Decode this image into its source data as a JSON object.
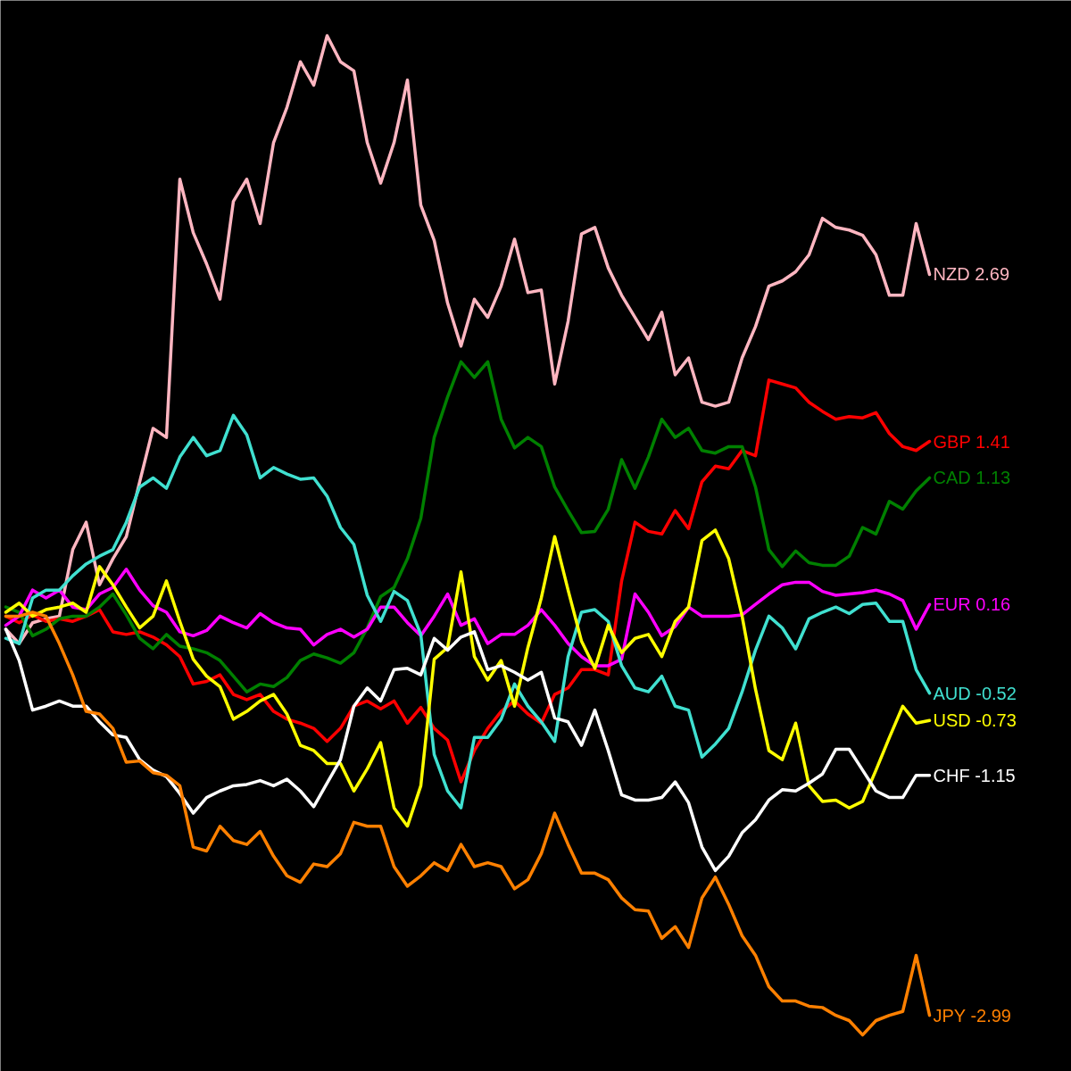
{
  "chart_data": {
    "type": "line",
    "ylim": [
      -3.42,
      4.79
    ],
    "tick_labels": false,
    "categories": [
      null,
      null,
      null,
      null,
      null,
      null,
      null,
      null,
      null,
      null,
      null,
      null,
      null,
      null,
      null,
      null,
      null,
      null,
      null,
      null,
      null,
      null,
      null,
      null,
      null,
      null,
      null,
      null,
      null,
      null,
      null,
      null,
      null,
      null,
      null,
      null,
      null,
      null,
      null,
      null,
      null,
      null,
      null,
      null,
      null,
      null,
      null,
      null,
      null,
      null,
      null,
      null,
      null,
      null,
      null,
      null,
      null,
      null,
      null,
      null,
      null,
      null,
      null,
      null,
      null,
      null,
      null,
      null,
      null,
      null
    ],
    "series": [
      {
        "color": "#ffb6c1",
        "values": [
          -0.03,
          -0.14,
          0.02,
          0.05,
          0.07,
          0.58,
          0.79,
          0.31,
          0.51,
          0.68,
          1.1,
          1.51,
          1.44,
          3.42,
          3.01,
          2.77,
          2.5,
          3.25,
          3.42,
          3.08,
          3.7,
          3.97,
          4.32,
          4.14,
          4.52,
          4.32,
          4.25,
          3.7,
          3.39,
          3.7,
          4.18,
          3.22,
          2.95,
          2.47,
          2.14,
          2.5,
          2.36,
          2.6,
          2.96,
          2.55,
          2.57,
          1.85,
          2.33,
          3.0,
          3.05,
          2.74,
          2.53,
          2.36,
          2.19,
          2.4,
          1.92,
          2.05,
          1.71,
          1.68,
          1.71,
          2.05,
          2.29,
          2.6,
          2.64,
          2.71,
          2.84,
          3.12,
          3.05,
          3.03,
          2.99,
          2.84,
          2.53,
          2.53,
          3.08,
          2.69
        ],
        "value_labels": [
          null,
          null,
          null,
          null,
          null,
          null,
          null,
          null,
          null,
          null,
          null,
          null,
          null,
          null,
          null,
          null,
          null,
          null,
          null,
          null,
          null,
          null,
          null,
          null,
          null,
          null,
          null,
          null,
          null,
          null,
          null,
          null,
          null,
          null,
          null,
          null,
          null,
          null,
          null,
          null,
          null,
          null,
          null,
          null,
          null,
          null,
          null,
          null,
          null,
          null,
          null,
          null,
          null,
          null,
          null,
          null,
          null,
          null,
          null,
          null,
          null,
          null,
          null,
          null,
          null,
          null,
          null,
          null,
          null,
          "NZD 2.69"
        ]
      },
      {
        "color": "#ff0000",
        "values": [
          0.07,
          0.02,
          0.08,
          0.03,
          0.05,
          0.03,
          0.07,
          0.12,
          -0.05,
          -0.07,
          -0.05,
          -0.09,
          -0.15,
          -0.24,
          -0.45,
          -0.43,
          -0.38,
          -0.53,
          -0.57,
          -0.53,
          -0.66,
          -0.72,
          -0.75,
          -0.79,
          -0.89,
          -0.79,
          -0.62,
          -0.58,
          -0.64,
          -0.58,
          -0.75,
          -0.63,
          -0.79,
          -0.88,
          -1.2,
          -0.96,
          -0.79,
          -0.66,
          -0.58,
          -0.68,
          -0.75,
          -0.53,
          -0.48,
          -0.34,
          -0.34,
          -0.38,
          0.34,
          0.79,
          0.72,
          0.7,
          0.88,
          0.74,
          1.1,
          1.22,
          1.2,
          1.34,
          1.3,
          1.88,
          1.85,
          1.82,
          1.71,
          1.64,
          1.58,
          1.6,
          1.59,
          1.63,
          1.47,
          1.37,
          1.34,
          1.41
        ],
        "value_labels": [
          null,
          null,
          null,
          null,
          null,
          null,
          null,
          null,
          null,
          null,
          null,
          null,
          null,
          null,
          null,
          null,
          null,
          null,
          null,
          null,
          null,
          null,
          null,
          null,
          null,
          null,
          null,
          null,
          null,
          null,
          null,
          null,
          null,
          null,
          null,
          null,
          null,
          null,
          null,
          null,
          null,
          null,
          null,
          null,
          null,
          null,
          null,
          null,
          null,
          null,
          null,
          null,
          null,
          null,
          null,
          null,
          null,
          null,
          null,
          null,
          null,
          null,
          null,
          null,
          null,
          null,
          null,
          null,
          null,
          "GBP 1.41"
        ]
      },
      {
        "color": "#008000",
        "values": [
          0.14,
          0.1,
          -0.08,
          -0.03,
          0.05,
          0.07,
          0.07,
          0.14,
          0.24,
          0.08,
          -0.1,
          -0.18,
          -0.07,
          -0.16,
          -0.18,
          -0.21,
          -0.27,
          -0.39,
          -0.51,
          -0.45,
          -0.47,
          -0.4,
          -0.27,
          -0.22,
          -0.25,
          -0.29,
          -0.21,
          -0.02,
          0.22,
          0.29,
          0.51,
          0.82,
          1.44,
          1.75,
          2.02,
          1.9,
          2.02,
          1.58,
          1.36,
          1.44,
          1.37,
          1.06,
          0.88,
          0.71,
          0.72,
          0.89,
          1.27,
          1.05,
          1.29,
          1.58,
          1.44,
          1.51,
          1.34,
          1.32,
          1.37,
          1.37,
          1.06,
          0.58,
          0.45,
          0.57,
          0.48,
          0.46,
          0.46,
          0.53,
          0.75,
          0.7,
          0.95,
          0.89,
          1.03,
          1.13
        ],
        "value_labels": [
          null,
          null,
          null,
          null,
          null,
          null,
          null,
          null,
          null,
          null,
          null,
          null,
          null,
          null,
          null,
          null,
          null,
          null,
          null,
          null,
          null,
          null,
          null,
          null,
          null,
          null,
          null,
          null,
          null,
          null,
          null,
          null,
          null,
          null,
          null,
          null,
          null,
          null,
          null,
          null,
          null,
          null,
          null,
          null,
          null,
          null,
          null,
          null,
          null,
          null,
          null,
          null,
          null,
          null,
          null,
          null,
          null,
          null,
          null,
          null,
          null,
          null,
          null,
          null,
          null,
          null,
          null,
          null,
          null,
          "CAD 1.13"
        ]
      },
      {
        "color": "#ff00ff",
        "values": [
          0.0,
          0.07,
          0.27,
          0.21,
          0.27,
          0.14,
          0.12,
          0.24,
          0.29,
          0.43,
          0.27,
          0.15,
          0.1,
          -0.05,
          -0.08,
          -0.04,
          0.07,
          0.02,
          -0.02,
          0.09,
          0.02,
          -0.02,
          -0.03,
          -0.15,
          -0.07,
          -0.03,
          -0.09,
          -0.03,
          0.14,
          0.14,
          0.02,
          -0.08,
          0.07,
          0.24,
          0.0,
          0.05,
          -0.14,
          -0.07,
          -0.07,
          0.0,
          0.12,
          0.0,
          -0.14,
          -0.24,
          -0.31,
          -0.31,
          -0.26,
          0.24,
          0.1,
          -0.08,
          -0.01,
          0.14,
          0.07,
          0.07,
          0.07,
          0.08,
          0.16,
          0.24,
          0.31,
          0.33,
          0.33,
          0.26,
          0.23,
          0.24,
          0.25,
          0.27,
          0.24,
          0.19,
          -0.03,
          0.16
        ],
        "value_labels": [
          null,
          null,
          null,
          null,
          null,
          null,
          null,
          null,
          null,
          null,
          null,
          null,
          null,
          null,
          null,
          null,
          null,
          null,
          null,
          null,
          null,
          null,
          null,
          null,
          null,
          null,
          null,
          null,
          null,
          null,
          null,
          null,
          null,
          null,
          null,
          null,
          null,
          null,
          null,
          null,
          null,
          null,
          null,
          null,
          null,
          null,
          null,
          null,
          null,
          null,
          null,
          null,
          null,
          null,
          null,
          null,
          null,
          null,
          null,
          null,
          null,
          null,
          null,
          null,
          null,
          null,
          null,
          null,
          null,
          "EUR 0.16"
        ]
      },
      {
        "color": "#40e0d0",
        "values": [
          -0.1,
          -0.14,
          0.21,
          0.27,
          0.27,
          0.38,
          0.47,
          0.53,
          0.58,
          0.79,
          1.06,
          1.13,
          1.05,
          1.29,
          1.44,
          1.3,
          1.34,
          1.61,
          1.46,
          1.13,
          1.21,
          1.16,
          1.12,
          1.13,
          0.99,
          0.75,
          0.62,
          0.23,
          0.03,
          0.26,
          0.19,
          -0.07,
          -0.99,
          -1.27,
          -1.4,
          -0.86,
          -0.86,
          -0.72,
          -0.45,
          -0.62,
          -0.74,
          -0.89,
          -0.24,
          0.1,
          0.12,
          0.03,
          -0.31,
          -0.48,
          -0.51,
          -0.39,
          -0.62,
          -0.65,
          -1.01,
          -0.91,
          -0.79,
          -0.51,
          -0.19,
          0.07,
          -0.02,
          -0.18,
          0.05,
          0.1,
          0.14,
          0.09,
          0.16,
          0.17,
          0.03,
          0.03,
          -0.34,
          -0.52
        ],
        "value_labels": [
          null,
          null,
          null,
          null,
          null,
          null,
          null,
          null,
          null,
          null,
          null,
          null,
          null,
          null,
          null,
          null,
          null,
          null,
          null,
          null,
          null,
          null,
          null,
          null,
          null,
          null,
          null,
          null,
          null,
          null,
          null,
          null,
          null,
          null,
          null,
          null,
          null,
          null,
          null,
          null,
          null,
          null,
          null,
          null,
          null,
          null,
          null,
          null,
          null,
          null,
          null,
          null,
          null,
          null,
          null,
          null,
          null,
          null,
          null,
          null,
          null,
          null,
          null,
          null,
          null,
          null,
          null,
          null,
          null,
          "AUD -0.52"
        ]
      },
      {
        "color": "#ffff00",
        "values": [
          0.1,
          0.17,
          0.07,
          0.12,
          0.14,
          0.17,
          0.1,
          0.45,
          0.31,
          0.14,
          -0.02,
          0.07,
          0.34,
          0.03,
          -0.26,
          -0.39,
          -0.47,
          -0.72,
          -0.66,
          -0.58,
          -0.53,
          -0.68,
          -0.92,
          -0.96,
          -1.06,
          -1.06,
          -1.27,
          -1.1,
          -0.9,
          -1.4,
          -1.54,
          -1.23,
          -0.26,
          -0.17,
          0.41,
          -0.24,
          -0.42,
          -0.27,
          -0.62,
          -0.17,
          0.21,
          0.68,
          0.27,
          -0.12,
          -0.33,
          0.0,
          -0.21,
          -0.1,
          -0.07,
          -0.24,
          0.03,
          0.14,
          0.65,
          0.73,
          0.51,
          0.07,
          -0.49,
          -0.96,
          -1.03,
          -0.75,
          -1.23,
          -1.35,
          -1.34,
          -1.4,
          -1.35,
          -1.11,
          -0.86,
          -0.62,
          -0.75,
          -0.73
        ],
        "value_labels": [
          null,
          null,
          null,
          null,
          null,
          null,
          null,
          null,
          null,
          null,
          null,
          null,
          null,
          null,
          null,
          null,
          null,
          null,
          null,
          null,
          null,
          null,
          null,
          null,
          null,
          null,
          null,
          null,
          null,
          null,
          null,
          null,
          null,
          null,
          null,
          null,
          null,
          null,
          null,
          null,
          null,
          null,
          null,
          null,
          null,
          null,
          null,
          null,
          null,
          null,
          null,
          null,
          null,
          null,
          null,
          null,
          null,
          null,
          null,
          null,
          null,
          null,
          null,
          null,
          null,
          null,
          null,
          null,
          null,
          "USD -0.73"
        ]
      },
      {
        "color": "#ffffff",
        "values": [
          -0.03,
          -0.27,
          -0.65,
          -0.62,
          -0.58,
          -0.62,
          -0.62,
          -0.74,
          -0.84,
          -0.86,
          -1.03,
          -1.11,
          -1.16,
          -1.29,
          -1.44,
          -1.32,
          -1.27,
          -1.23,
          -1.22,
          -1.19,
          -1.23,
          -1.18,
          -1.27,
          -1.39,
          -1.21,
          -1.03,
          -0.62,
          -0.48,
          -0.58,
          -0.34,
          -0.33,
          -0.38,
          -0.1,
          -0.19,
          -0.09,
          -0.05,
          -0.34,
          -0.31,
          -0.36,
          -0.42,
          -0.36,
          -0.71,
          -0.74,
          -0.92,
          -0.65,
          -0.96,
          -1.3,
          -1.34,
          -1.34,
          -1.32,
          -1.2,
          -1.36,
          -1.7,
          -1.88,
          -1.77,
          -1.59,
          -1.49,
          -1.34,
          -1.26,
          -1.27,
          -1.21,
          -1.14,
          -0.95,
          -0.95,
          -1.11,
          -1.27,
          -1.32,
          -1.32,
          -1.15,
          -1.15
        ],
        "value_labels": [
          null,
          null,
          null,
          null,
          null,
          null,
          null,
          null,
          null,
          null,
          null,
          null,
          null,
          null,
          null,
          null,
          null,
          null,
          null,
          null,
          null,
          null,
          null,
          null,
          null,
          null,
          null,
          null,
          null,
          null,
          null,
          null,
          null,
          null,
          null,
          null,
          null,
          null,
          null,
          null,
          null,
          null,
          null,
          null,
          null,
          null,
          null,
          null,
          null,
          null,
          null,
          null,
          null,
          null,
          null,
          null,
          null,
          null,
          null,
          null,
          null,
          null,
          null,
          null,
          null,
          null,
          null,
          null,
          null,
          "CHF -1.15"
        ]
      },
      {
        "color": "#ff8000",
        "values": [
          0.07,
          0.07,
          0.1,
          0.07,
          -0.14,
          -0.38,
          -0.66,
          -0.68,
          -0.79,
          -1.05,
          -1.04,
          -1.13,
          -1.15,
          -1.23,
          -1.7,
          -1.73,
          -1.54,
          -1.65,
          -1.68,
          -1.58,
          -1.77,
          -1.92,
          -1.97,
          -1.83,
          -1.85,
          -1.75,
          -1.51,
          -1.54,
          -1.54,
          -1.85,
          -2.0,
          -1.92,
          -1.82,
          -1.88,
          -1.68,
          -1.85,
          -1.82,
          -1.85,
          -2.02,
          -1.95,
          -1.75,
          -1.44,
          -1.68,
          -1.9,
          -1.9,
          -1.95,
          -2.09,
          -2.18,
          -2.19,
          -2.4,
          -2.31,
          -2.47,
          -2.09,
          -1.93,
          -2.14,
          -2.38,
          -2.53,
          -2.77,
          -2.88,
          -2.88,
          -2.92,
          -2.93,
          -2.99,
          -3.03,
          -3.14,
          -3.03,
          -2.99,
          -2.96,
          -2.53,
          -2.99
        ],
        "value_labels": [
          null,
          null,
          null,
          null,
          null,
          null,
          null,
          null,
          null,
          null,
          null,
          null,
          null,
          null,
          null,
          null,
          null,
          null,
          null,
          null,
          null,
          null,
          null,
          null,
          null,
          null,
          null,
          null,
          null,
          null,
          null,
          null,
          null,
          null,
          null,
          null,
          null,
          null,
          null,
          null,
          null,
          null,
          null,
          null,
          null,
          null,
          null,
          null,
          null,
          null,
          null,
          null,
          null,
          null,
          null,
          null,
          null,
          null,
          null,
          null,
          null,
          null,
          null,
          null,
          null,
          null,
          null,
          null,
          null,
          "JPY -2.99"
        ]
      }
    ]
  }
}
